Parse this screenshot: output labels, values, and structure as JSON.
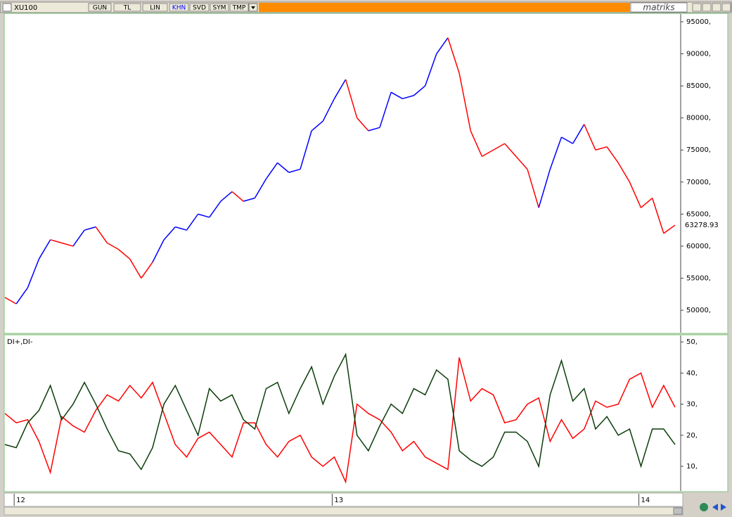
{
  "toolbar": {
    "symbol": "XU100",
    "buttons": [
      "GUN",
      "TL",
      "LIN",
      "KHN",
      "SVD",
      "SYM",
      "TMP"
    ],
    "active_button": "KHN",
    "brand": "matriks"
  },
  "chart_data": [
    {
      "type": "line",
      "ylim": [
        46500,
        96200
      ],
      "yticks": [
        {
          "value": 95000,
          "label": "95000,"
        },
        {
          "value": 90000,
          "label": "90000,"
        },
        {
          "value": 85000,
          "label": "85000,"
        },
        {
          "value": 80000,
          "label": "80000,"
        },
        {
          "value": 75000,
          "label": "75000,"
        },
        {
          "value": 70000,
          "label": "70000,"
        },
        {
          "value": 65000,
          "label": "65000,"
        },
        {
          "value": 60000,
          "label": "60000,"
        },
        {
          "value": 55000,
          "label": "55000,"
        },
        {
          "value": 50000,
          "label": "50000,"
        }
      ],
      "values": [
        52000,
        51000,
        53500,
        58000,
        61000,
        60500,
        60000,
        62500,
        63000,
        60500,
        59500,
        58000,
        55000,
        57500,
        61000,
        63000,
        62500,
        65000,
        64500,
        67000,
        68500,
        67000,
        67500,
        70500,
        73000,
        71500,
        72000,
        78000,
        79500,
        83000,
        86000,
        80000,
        78000,
        78500,
        84000,
        83000,
        83500,
        85000,
        90000,
        92500,
        87000,
        78000,
        74000,
        75000,
        76000,
        74000,
        72000,
        66000,
        72000,
        77000,
        76000,
        79000,
        75000,
        75500,
        73000,
        70000,
        66000,
        67500,
        62000,
        63278.93
      ],
      "point_colors": [
        "#ff0000",
        "#ff0000",
        "#0000ff",
        "#0000ff",
        "#0000ff",
        "#ff0000",
        "#ff0000",
        "#0000ff",
        "#0000ff",
        "#ff0000",
        "#ff0000",
        "#ff0000",
        "#ff0000",
        "#ff0000",
        "#0000ff",
        "#0000ff",
        "#0000ff",
        "#0000ff",
        "#0000ff",
        "#0000ff",
        "#0000ff",
        "#ff0000",
        "#0000ff",
        "#0000ff",
        "#0000ff",
        "#0000ff",
        "#0000ff",
        "#0000ff",
        "#0000ff",
        "#0000ff",
        "#0000ff",
        "#ff0000",
        "#ff0000",
        "#0000ff",
        "#0000ff",
        "#0000ff",
        "#0000ff",
        "#0000ff",
        "#0000ff",
        "#0000ff",
        "#ff0000",
        "#ff0000",
        "#ff0000",
        "#ff0000",
        "#ff0000",
        "#ff0000",
        "#ff0000",
        "#ff0000",
        "#0000ff",
        "#0000ff",
        "#0000ff",
        "#0000ff",
        "#ff0000",
        "#ff0000",
        "#ff0000",
        "#ff0000",
        "#ff0000",
        "#ff0000",
        "#ff0000",
        "#ff0000"
      ]
    },
    {
      "type": "line",
      "title": "DI+,DI-",
      "ylim": [
        2.3,
        52.3
      ],
      "yticks": [
        {
          "value": 50,
          "label": "50,"
        },
        {
          "value": 40,
          "label": "40,"
        },
        {
          "value": 30,
          "label": "30,"
        },
        {
          "value": 20,
          "label": "20,"
        },
        {
          "value": 10,
          "label": "10,"
        }
      ],
      "categories": [
        null,
        "12",
        null,
        null,
        null,
        null,
        null,
        null,
        null,
        null,
        null,
        null,
        null,
        null,
        null,
        null,
        null,
        null,
        null,
        null,
        null,
        null,
        null,
        null,
        null,
        null,
        null,
        null,
        null,
        "13",
        null,
        null,
        null,
        null,
        null,
        null,
        null,
        null,
        null,
        null,
        null,
        null,
        null,
        null,
        null,
        null,
        null,
        null,
        null,
        null,
        null,
        null,
        null,
        null,
        null,
        null,
        "14",
        null,
        null,
        null
      ],
      "series": [
        {
          "color": "#ff0000",
          "values": [
            27,
            24,
            25,
            18,
            8,
            26,
            23,
            21,
            28,
            33,
            31,
            36,
            32,
            37,
            27,
            17,
            13,
            19,
            21,
            17,
            13,
            24,
            24,
            17,
            13,
            18,
            20,
            13,
            10,
            13,
            5,
            30,
            27,
            25,
            21,
            15,
            18,
            13,
            11,
            9,
            45,
            31,
            35,
            33,
            24,
            25,
            30,
            32,
            18,
            25,
            19,
            22,
            31,
            29,
            30,
            38,
            40,
            29,
            36,
            29
          ]
        },
        {
          "color": "#0b3d0b",
          "values": [
            17,
            16,
            24,
            28,
            36,
            25,
            30,
            37,
            30,
            22,
            15,
            14,
            9,
            16,
            30,
            36,
            28,
            20,
            35,
            31,
            33,
            25,
            22,
            35,
            37,
            27,
            35,
            42,
            30,
            39,
            46,
            20,
            15,
            23,
            30,
            27,
            35,
            33,
            41,
            38,
            15,
            12,
            10,
            13,
            21,
            21,
            18,
            10,
            33,
            44,
            31,
            35,
            22,
            26,
            20,
            22,
            10,
            22,
            22,
            17
          ]
        }
      ]
    }
  ]
}
